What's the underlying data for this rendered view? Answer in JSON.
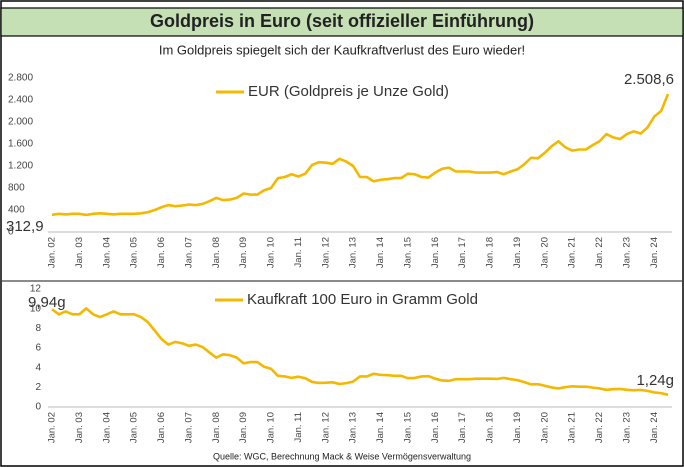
{
  "header": {
    "title": "Goldpreis in Euro (seit offizieller Einführung)"
  },
  "subtitle": "Im Goldpreis spiegelt sich der Kaufkraftverlust des Euro wieder!",
  "source": "Quelle: WGC, Berechnung Mack & Weise Vermögensverwaltung",
  "chart_data": [
    {
      "type": "line",
      "legend": "top",
      "grid": false,
      "categories": [
        "Jan. 02",
        null,
        null,
        null,
        "Jan. 03",
        null,
        null,
        null,
        "Jan. 04",
        null,
        null,
        null,
        "Jan. 05",
        null,
        null,
        null,
        "Jan. 06",
        null,
        null,
        null,
        "Jan. 07",
        null,
        null,
        null,
        "Jan. 08",
        null,
        null,
        null,
        "Jan. 09",
        null,
        null,
        null,
        "Jan. 10",
        null,
        null,
        null,
        "Jan. 11",
        null,
        null,
        null,
        "Jan. 12",
        null,
        null,
        null,
        "Jan. 13",
        null,
        null,
        null,
        "Jan. 14",
        null,
        null,
        null,
        "Jan. 15",
        null,
        null,
        null,
        "Jan. 16",
        null,
        null,
        null,
        "Jan. 17",
        null,
        null,
        null,
        "Jan. 18",
        null,
        null,
        null,
        "Jan. 19",
        null,
        null,
        null,
        "Jan. 20",
        null,
        null,
        null,
        "Jan. 21",
        null,
        null,
        null,
        "Jan. 22",
        null,
        null,
        null,
        "Jan. 23",
        null,
        null,
        null,
        "Jan. 24",
        null,
        null
      ],
      "ylim": [
        0,
        2800
      ],
      "yticks": [
        0,
        400,
        800,
        {
          "value": 1200,
          "label": "1.200"
        },
        {
          "value": 1600,
          "label": "1.600"
        },
        {
          "value": 2000,
          "label": "2.000"
        },
        {
          "value": 2400,
          "label": "2.400"
        },
        {
          "value": 2800,
          "label": "2.800"
        }
      ],
      "series": [
        {
          "name": "EUR (Goldpreis je Unze Gold)",
          "color": "#f5b800",
          "values": [
            312.9,
            330,
            320,
            330,
            330,
            310,
            330,
            340,
            330,
            320,
            330,
            330,
            330,
            340,
            360,
            400,
            450,
            490,
            470,
            480,
            500,
            490,
            510,
            560,
            620,
            580,
            590,
            620,
            700,
            680,
            680,
            760,
            800,
            980,
            1000,
            1050,
            1010,
            1060,
            1220,
            1270,
            1260,
            1240,
            1330,
            1280,
            1200,
            1000,
            1000,
            920,
            950,
            960,
            980,
            980,
            1060,
            1050,
            1000,
            990,
            1080,
            1150,
            1170,
            1100,
            1100,
            1100,
            1080,
            1080,
            1080,
            1090,
            1050,
            1100,
            1140,
            1230,
            1350,
            1340,
            1440,
            1560,
            1650,
            1540,
            1480,
            1500,
            1500,
            1580,
            1650,
            1780,
            1720,
            1690,
            1780,
            1830,
            1790,
            1900,
            2100,
            2200,
            2508.6
          ],
          "value_labels": [
            "312,9",
            null,
            null,
            null,
            null,
            null,
            null,
            null,
            null,
            null,
            null,
            null,
            null,
            null,
            null,
            null,
            null,
            null,
            null,
            null,
            null,
            null,
            null,
            null,
            null,
            null,
            null,
            null,
            null,
            null,
            null,
            null,
            null,
            null,
            null,
            null,
            null,
            null,
            null,
            null,
            null,
            null,
            null,
            null,
            null,
            null,
            null,
            null,
            null,
            null,
            null,
            null,
            null,
            null,
            null,
            null,
            null,
            null,
            null,
            null,
            null,
            null,
            null,
            null,
            null,
            null,
            null,
            null,
            null,
            null,
            null,
            null,
            null,
            null,
            null,
            null,
            null,
            null,
            null,
            null,
            null,
            null,
            null,
            null,
            null,
            null,
            null,
            null,
            null,
            null,
            "2.508,6"
          ]
        }
      ]
    },
    {
      "type": "line",
      "legend": "top",
      "grid": false,
      "categories": [
        "Jan. 02",
        null,
        null,
        null,
        "Jan. 03",
        null,
        null,
        null,
        "Jan. 04",
        null,
        null,
        null,
        "Jan. 05",
        null,
        null,
        null,
        "Jan. 06",
        null,
        null,
        null,
        "Jan. 07",
        null,
        null,
        null,
        "Jan. 08",
        null,
        null,
        null,
        "Jan. 09",
        null,
        null,
        null,
        "Jan. 10",
        null,
        null,
        null,
        "Jan. 11",
        null,
        null,
        null,
        "Jan. 12",
        null,
        null,
        null,
        "Jan. 13",
        null,
        null,
        null,
        "Jan. 14",
        null,
        null,
        null,
        "Jan. 15",
        null,
        null,
        null,
        "Jan. 16",
        null,
        null,
        null,
        "Jan. 17",
        null,
        null,
        null,
        "Jan. 18",
        null,
        null,
        null,
        "Jan. 19",
        null,
        null,
        null,
        "Jan. 20",
        null,
        null,
        null,
        "Jan. 21",
        null,
        null,
        null,
        "Jan. 22",
        null,
        null,
        null,
        "Jan. 23",
        null,
        null,
        null,
        "Jan. 24",
        null,
        null
      ],
      "ylim": [
        0,
        12
      ],
      "yticks": [
        0,
        2,
        4,
        6,
        8,
        10,
        12
      ],
      "series": [
        {
          "name": "Kaufkraft 100 Euro in Gramm Gold",
          "color": "#f5b800",
          "values": [
            9.94,
            9.43,
            9.72,
            9.43,
            9.43,
            10.03,
            9.43,
            9.15,
            9.43,
            9.72,
            9.43,
            9.43,
            9.43,
            9.15,
            8.64,
            7.78,
            6.91,
            6.35,
            6.62,
            6.48,
            6.22,
            6.35,
            6.1,
            5.55,
            5.02,
            5.36,
            5.27,
            5.02,
            4.44,
            4.57,
            4.57,
            4.09,
            3.89,
            3.17,
            3.11,
            2.96,
            3.08,
            2.93,
            2.55,
            2.45,
            2.47,
            2.51,
            2.34,
            2.43,
            2.59,
            3.11,
            3.11,
            3.38,
            3.27,
            3.24,
            3.17,
            3.17,
            2.93,
            2.96,
            3.11,
            3.14,
            2.88,
            2.7,
            2.66,
            2.83,
            2.83,
            2.83,
            2.88,
            2.88,
            2.88,
            2.85,
            2.96,
            2.83,
            2.73,
            2.53,
            2.3,
            2.32,
            2.16,
            1.99,
            1.89,
            2.02,
            2.1,
            2.07,
            2.07,
            1.97,
            1.89,
            1.75,
            1.81,
            1.84,
            1.75,
            1.7,
            1.74,
            1.64,
            1.48,
            1.41,
            1.24
          ],
          "value_labels": [
            "9,94g",
            null,
            null,
            null,
            null,
            null,
            null,
            null,
            null,
            null,
            null,
            null,
            null,
            null,
            null,
            null,
            null,
            null,
            null,
            null,
            null,
            null,
            null,
            null,
            null,
            null,
            null,
            null,
            null,
            null,
            null,
            null,
            null,
            null,
            null,
            null,
            null,
            null,
            null,
            null,
            null,
            null,
            null,
            null,
            null,
            null,
            null,
            null,
            null,
            null,
            null,
            null,
            null,
            null,
            null,
            null,
            null,
            null,
            null,
            null,
            null,
            null,
            null,
            null,
            null,
            null,
            null,
            null,
            null,
            null,
            null,
            null,
            null,
            null,
            null,
            null,
            null,
            null,
            null,
            null,
            null,
            null,
            null,
            null,
            null,
            null,
            null,
            null,
            null,
            null,
            "1,24g"
          ]
        }
      ]
    }
  ]
}
